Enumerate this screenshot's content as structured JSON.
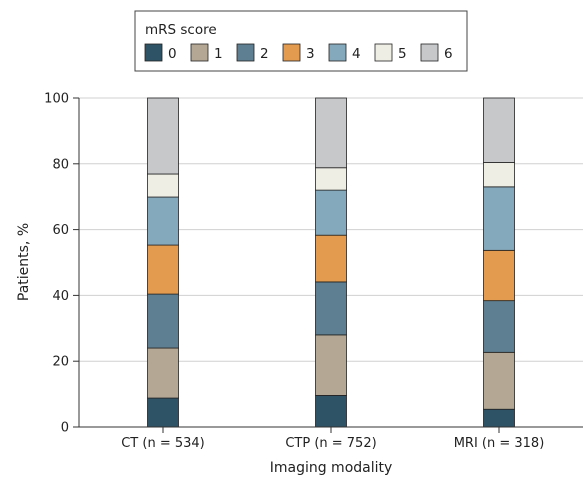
{
  "chart_data": {
    "type": "bar",
    "stacked": true,
    "title": "",
    "xlabel": "Imaging modality",
    "ylabel": "Patients, %",
    "ylim": [
      0,
      100
    ],
    "yticks": [
      0,
      20,
      40,
      60,
      80,
      100
    ],
    "categories": [
      "CT (n = 534)",
      "CTP (n = 752)",
      "MRI (n = 318)"
    ],
    "legend": {
      "title": "mRS score",
      "placement": "top-center"
    },
    "series": [
      {
        "name": "0",
        "color": "#2e5366",
        "values": [
          8.8,
          9.6,
          5.4
        ]
      },
      {
        "name": "1",
        "color": "#b4a894",
        "values": [
          15.2,
          18.4,
          17.3
        ]
      },
      {
        "name": "2",
        "color": "#5d7f91",
        "values": [
          16.4,
          16.1,
          15.7
        ]
      },
      {
        "name": "3",
        "color": "#e39b4f",
        "values": [
          14.9,
          14.2,
          15.3
        ]
      },
      {
        "name": "4",
        "color": "#85a9bc",
        "values": [
          14.6,
          13.7,
          19.3
        ]
      },
      {
        "name": "5",
        "color": "#efeee5",
        "values": [
          7.0,
          6.8,
          7.4
        ]
      },
      {
        "name": "6",
        "color": "#c7c8ca",
        "values": [
          23.1,
          21.2,
          19.6
        ]
      }
    ]
  }
}
